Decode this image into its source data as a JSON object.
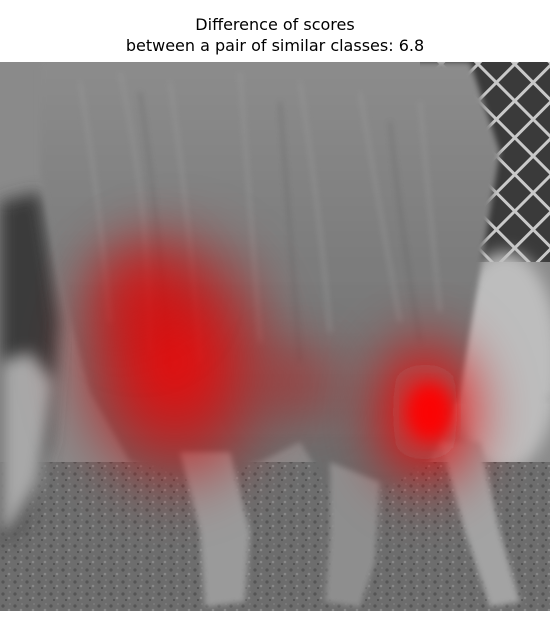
{
  "title": {
    "line1": "Difference of scores",
    "line2": "between a pair of similar classes: 6.8"
  },
  "image": {
    "subject": "grayscale photo of a long-haired dog's hindquarters and legs beside a chain-link fence",
    "overlay": "red saliency heatmap",
    "colors": {
      "heatmap": "#ff0000",
      "background": "#ffffff"
    }
  }
}
